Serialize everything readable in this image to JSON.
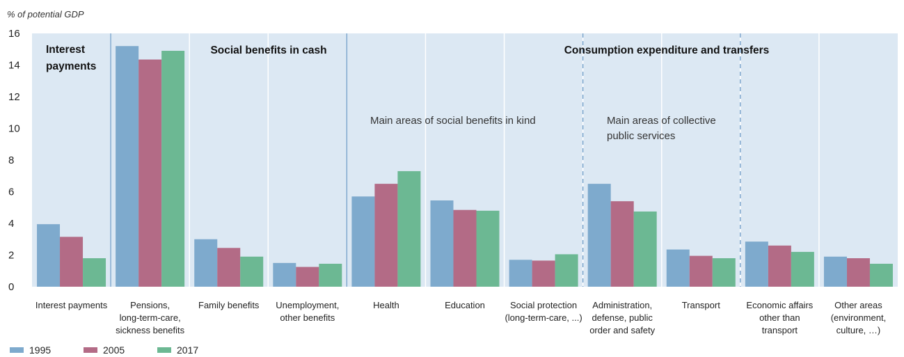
{
  "chart_data": {
    "type": "bar",
    "ylabel": "% of potential GDP",
    "ylim": [
      0,
      16
    ],
    "yticks": [
      0,
      2,
      4,
      6,
      8,
      10,
      12,
      14,
      16
    ],
    "grid": false,
    "legend_position": "bottom-left",
    "categories": [
      [
        "Interest payments"
      ],
      [
        "Pensions,",
        "long-term-care,",
        "sickness benefits"
      ],
      [
        "Family benefits"
      ],
      [
        "Unemployment,",
        "other benefits"
      ],
      [
        "Health"
      ],
      [
        "Education"
      ],
      [
        "Social protection",
        "(long-term-care, ...)"
      ],
      [
        "Administration,",
        "defense, public",
        "order and safety"
      ],
      [
        "Transport"
      ],
      [
        "Economic affairs",
        "other than",
        "transport"
      ],
      [
        "Other areas",
        "(environment,",
        "culture, …)"
      ]
    ],
    "series": [
      {
        "name": "1995",
        "color": "#7eaacd",
        "values": [
          3.95,
          15.2,
          3.0,
          1.5,
          5.7,
          5.45,
          1.7,
          6.5,
          2.35,
          2.85,
          1.9
        ]
      },
      {
        "name": "2005",
        "color": "#b36b86",
        "values": [
          3.15,
          14.35,
          2.45,
          1.25,
          6.5,
          4.85,
          1.65,
          5.4,
          1.95,
          2.6,
          1.8
        ]
      },
      {
        "name": "2017",
        "color": "#6cb893",
        "values": [
          1.8,
          14.9,
          1.9,
          1.45,
          7.3,
          4.8,
          2.05,
          4.75,
          1.8,
          2.2,
          1.45
        ]
      }
    ],
    "group_titles": [
      {
        "label": [
          "Interest",
          "payments"
        ],
        "bold": true
      },
      {
        "label": [
          "Social benefits in cash"
        ],
        "bold": true
      },
      {
        "label": [
          "Consumption expenditure and transfers"
        ],
        "bold": true
      }
    ],
    "annotations": [
      {
        "label": [
          "Main areas of social benefits in kind"
        ]
      },
      {
        "label": [
          "Main areas of collective",
          "public services"
        ]
      }
    ]
  }
}
